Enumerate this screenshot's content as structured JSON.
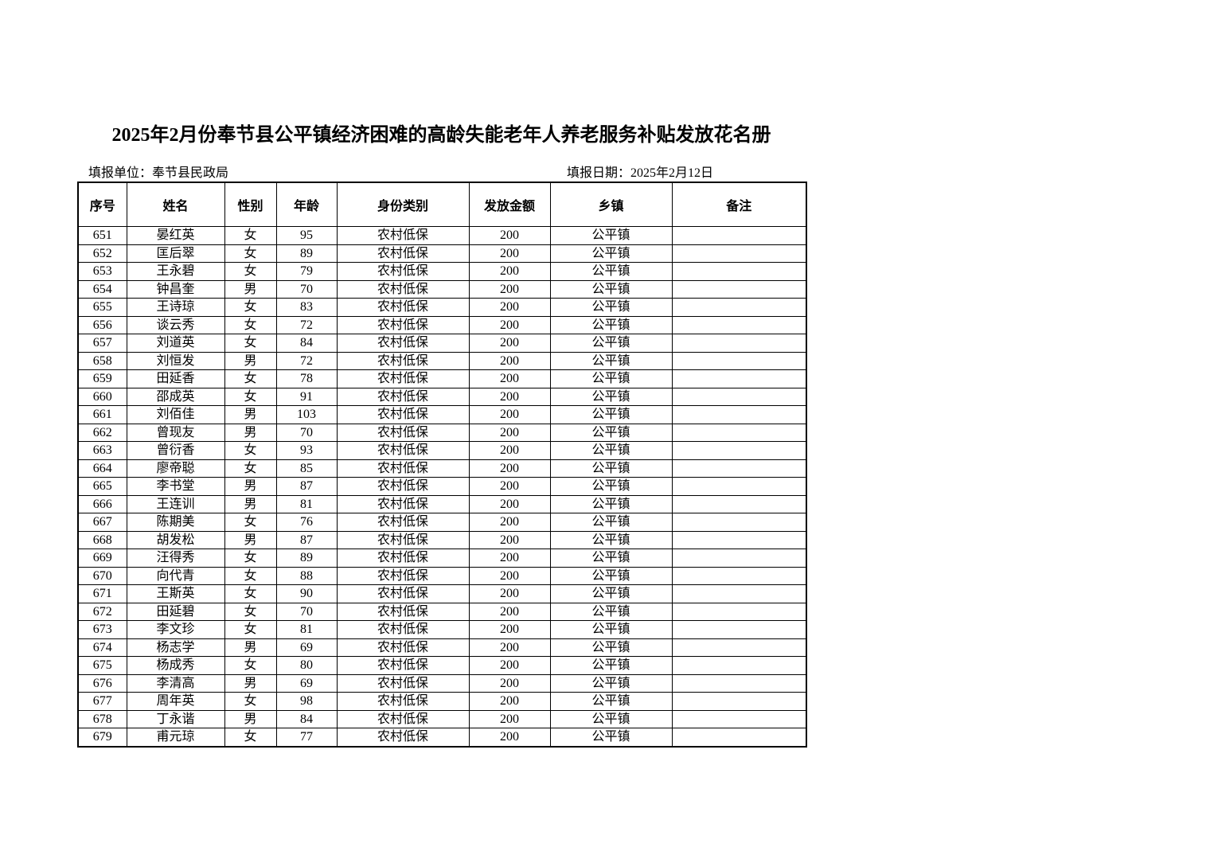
{
  "document": {
    "title": "2025年2月份奉节县公平镇经济困难的高龄失能老年人养老服务补贴发放花名册",
    "meta": {
      "unit": "填报单位：奉节县民政局",
      "date": "填报日期：2025年2月12日"
    },
    "table": {
      "headers": [
        "序号",
        "姓名",
        "性别",
        "年龄",
        "身份类别",
        "发放金额",
        "乡镇",
        "备注"
      ],
      "column_keys": [
        "index",
        "name",
        "gender",
        "age",
        "category",
        "amount",
        "township",
        "remark"
      ],
      "rows": [
        [
          "651",
          "晏红英",
          "女",
          "95",
          "农村低保",
          "200",
          "公平镇",
          ""
        ],
        [
          "652",
          "匡后翠",
          "女",
          "89",
          "农村低保",
          "200",
          "公平镇",
          ""
        ],
        [
          "653",
          "王永碧",
          "女",
          "79",
          "农村低保",
          "200",
          "公平镇",
          ""
        ],
        [
          "654",
          "钟昌奎",
          "男",
          "70",
          "农村低保",
          "200",
          "公平镇",
          ""
        ],
        [
          "655",
          "王诗琼",
          "女",
          "83",
          "农村低保",
          "200",
          "公平镇",
          ""
        ],
        [
          "656",
          "谈云秀",
          "女",
          "72",
          "农村低保",
          "200",
          "公平镇",
          ""
        ],
        [
          "657",
          "刘道英",
          "女",
          "84",
          "农村低保",
          "200",
          "公平镇",
          ""
        ],
        [
          "658",
          "刘恒发",
          "男",
          "72",
          "农村低保",
          "200",
          "公平镇",
          ""
        ],
        [
          "659",
          "田延香",
          "女",
          "78",
          "农村低保",
          "200",
          "公平镇",
          ""
        ],
        [
          "660",
          "邵成英",
          "女",
          "91",
          "农村低保",
          "200",
          "公平镇",
          ""
        ],
        [
          "661",
          "刘佰佳",
          "男",
          "103",
          "农村低保",
          "200",
          "公平镇",
          ""
        ],
        [
          "662",
          "曾现友",
          "男",
          "70",
          "农村低保",
          "200",
          "公平镇",
          ""
        ],
        [
          "663",
          "曾衍香",
          "女",
          "93",
          "农村低保",
          "200",
          "公平镇",
          ""
        ],
        [
          "664",
          "廖帝聪",
          "女",
          "85",
          "农村低保",
          "200",
          "公平镇",
          ""
        ],
        [
          "665",
          "李书堂",
          "男",
          "87",
          "农村低保",
          "200",
          "公平镇",
          ""
        ],
        [
          "666",
          "王连训",
          "男",
          "81",
          "农村低保",
          "200",
          "公平镇",
          ""
        ],
        [
          "667",
          "陈期美",
          "女",
          "76",
          "农村低保",
          "200",
          "公平镇",
          ""
        ],
        [
          "668",
          "胡发松",
          "男",
          "87",
          "农村低保",
          "200",
          "公平镇",
          ""
        ],
        [
          "669",
          "汪得秀",
          "女",
          "89",
          "农村低保",
          "200",
          "公平镇",
          ""
        ],
        [
          "670",
          "向代青",
          "女",
          "88",
          "农村低保",
          "200",
          "公平镇",
          ""
        ],
        [
          "671",
          "王斯英",
          "女",
          "90",
          "农村低保",
          "200",
          "公平镇",
          ""
        ],
        [
          "672",
          "田延碧",
          "女",
          "70",
          "农村低保",
          "200",
          "公平镇",
          ""
        ],
        [
          "673",
          "李文珍",
          "女",
          "81",
          "农村低保",
          "200",
          "公平镇",
          ""
        ],
        [
          "674",
          "杨志学",
          "男",
          "69",
          "农村低保",
          "200",
          "公平镇",
          ""
        ],
        [
          "675",
          "杨成秀",
          "女",
          "80",
          "农村低保",
          "200",
          "公平镇",
          ""
        ],
        [
          "676",
          "李清高",
          "男",
          "69",
          "农村低保",
          "200",
          "公平镇",
          ""
        ],
        [
          "677",
          "周年英",
          "女",
          "98",
          "农村低保",
          "200",
          "公平镇",
          ""
        ],
        [
          "678",
          "丁永谐",
          "男",
          "84",
          "农村低保",
          "200",
          "公平镇",
          ""
        ],
        [
          "679",
          "甫元琼",
          "女",
          "77",
          "农村低保",
          "200",
          "公平镇",
          ""
        ]
      ]
    }
  }
}
